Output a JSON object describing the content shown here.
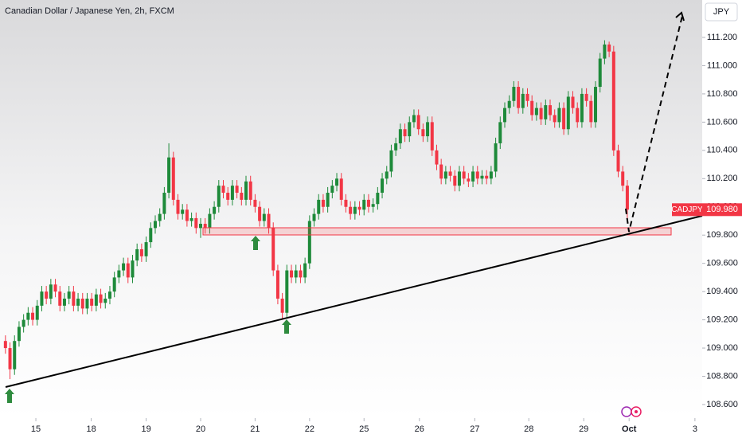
{
  "chart_data": {
    "type": "candlestick",
    "title": "Canadian Dollar / Japanese Yen, 2h, FXCM",
    "currency": "JPY",
    "symbol": "CADJPY",
    "last_price": {
      "value": 109.98,
      "label": "109.980"
    },
    "up_color": "#1e8a3a",
    "down_color": "#f23645",
    "grid": false,
    "xlim": [
      -1.2,
      153.5
    ],
    "ylim": [
      108.504,
      111.465
    ],
    "xticks": [
      {
        "value": 6.7,
        "label": "15"
      },
      {
        "value": 18.9,
        "label": "18"
      },
      {
        "value": 31,
        "label": "19"
      },
      {
        "value": 43,
        "label": "20"
      },
      {
        "value": 55,
        "label": "21"
      },
      {
        "value": 67,
        "label": "22"
      },
      {
        "value": 79,
        "label": "25"
      },
      {
        "value": 91.2,
        "label": "26"
      },
      {
        "value": 103.4,
        "label": "27"
      },
      {
        "value": 115.3,
        "label": "28"
      },
      {
        "value": 127.4,
        "label": "29"
      },
      {
        "value": 137.4,
        "label": "Oct"
      },
      {
        "value": 151.9,
        "label": "3"
      }
    ],
    "yticks": [
      {
        "value": 108.6,
        "label": "108.600"
      },
      {
        "value": 108.8,
        "label": "108.800"
      },
      {
        "value": 109.0,
        "label": "109.000"
      },
      {
        "value": 109.2,
        "label": "109.200"
      },
      {
        "value": 109.4,
        "label": "109.400"
      },
      {
        "value": 109.6,
        "label": "109.600"
      },
      {
        "value": 109.8,
        "label": "109.800"
      },
      {
        "value": 110.0,
        "label": "110.000"
      },
      {
        "value": 110.2,
        "label": "110.200"
      },
      {
        "value": 110.4,
        "label": "110.400"
      },
      {
        "value": 110.6,
        "label": "110.600"
      },
      {
        "value": 110.8,
        "label": "110.800"
      },
      {
        "value": 111.0,
        "label": "111.000"
      },
      {
        "value": 111.2,
        "label": "111.200"
      }
    ],
    "candles": [
      [
        109.05,
        109.09,
        108.96,
        109.0
      ],
      [
        109.0,
        109.04,
        108.78,
        108.85
      ],
      [
        108.85,
        109.09,
        108.81,
        109.05
      ],
      [
        109.05,
        109.19,
        109.01,
        109.15
      ],
      [
        109.15,
        109.24,
        109.11,
        109.2
      ],
      [
        109.2,
        109.29,
        109.16,
        109.25
      ],
      [
        109.25,
        109.29,
        109.16,
        109.2
      ],
      [
        109.2,
        109.34,
        109.16,
        109.3
      ],
      [
        109.3,
        109.44,
        109.26,
        109.4
      ],
      [
        109.4,
        109.44,
        109.31,
        109.35
      ],
      [
        109.35,
        109.49,
        109.31,
        109.45
      ],
      [
        109.45,
        109.49,
        109.36,
        109.4
      ],
      [
        109.4,
        109.44,
        109.26,
        109.3
      ],
      [
        109.3,
        109.39,
        109.26,
        109.35
      ],
      [
        109.35,
        109.44,
        109.31,
        109.4
      ],
      [
        109.4,
        109.44,
        109.26,
        109.3
      ],
      [
        109.3,
        109.39,
        109.26,
        109.35
      ],
      [
        109.35,
        109.39,
        109.24,
        109.28
      ],
      [
        109.28,
        109.39,
        109.24,
        109.35
      ],
      [
        109.35,
        109.39,
        109.26,
        109.3
      ],
      [
        109.3,
        109.42,
        109.26,
        109.38
      ],
      [
        109.38,
        109.42,
        109.28,
        109.32
      ],
      [
        109.32,
        109.39,
        109.28,
        109.35
      ],
      [
        109.35,
        109.44,
        109.31,
        109.4
      ],
      [
        109.4,
        109.54,
        109.36,
        109.5
      ],
      [
        109.5,
        109.59,
        109.46,
        109.55
      ],
      [
        109.55,
        109.64,
        109.51,
        109.6
      ],
      [
        109.6,
        109.64,
        109.46,
        109.5
      ],
      [
        109.5,
        109.66,
        109.46,
        109.62
      ],
      [
        109.62,
        109.74,
        109.58,
        109.7
      ],
      [
        109.7,
        109.74,
        109.61,
        109.65
      ],
      [
        109.65,
        109.79,
        109.61,
        109.75
      ],
      [
        109.75,
        109.89,
        109.71,
        109.85
      ],
      [
        109.85,
        109.94,
        109.81,
        109.9
      ],
      [
        109.9,
        109.99,
        109.86,
        109.95
      ],
      [
        109.95,
        110.14,
        109.91,
        110.1
      ],
      [
        110.1,
        110.45,
        110.06,
        110.35
      ],
      [
        110.35,
        110.39,
        110.01,
        110.05
      ],
      [
        110.05,
        110.09,
        109.91,
        109.95
      ],
      [
        109.95,
        110.02,
        109.91,
        109.98
      ],
      [
        109.98,
        110.02,
        109.86,
        109.9
      ],
      [
        109.9,
        109.96,
        109.86,
        109.92
      ],
      [
        109.92,
        109.96,
        109.81,
        109.85
      ],
      [
        109.85,
        109.92,
        109.78,
        109.88
      ],
      [
        109.88,
        109.92,
        109.81,
        109.85
      ],
      [
        109.85,
        109.99,
        109.81,
        109.95
      ],
      [
        109.95,
        110.04,
        109.91,
        110.0
      ],
      [
        110.0,
        110.19,
        109.96,
        110.15
      ],
      [
        110.15,
        110.19,
        110.06,
        110.1
      ],
      [
        110.1,
        110.14,
        110.01,
        110.05
      ],
      [
        110.05,
        110.19,
        110.01,
        110.15
      ],
      [
        110.15,
        110.19,
        110.06,
        110.1
      ],
      [
        110.1,
        110.14,
        110.01,
        110.05
      ],
      [
        110.05,
        110.22,
        110.01,
        110.18
      ],
      [
        110.18,
        110.22,
        110.01,
        110.05
      ],
      [
        110.05,
        110.09,
        109.96,
        110.0
      ],
      [
        110.0,
        110.04,
        109.86,
        109.9
      ],
      [
        109.9,
        109.99,
        109.86,
        109.95
      ],
      [
        109.95,
        109.99,
        109.81,
        109.85
      ],
      [
        109.85,
        109.89,
        109.51,
        109.55
      ],
      [
        109.55,
        109.59,
        109.31,
        109.35
      ],
      [
        109.35,
        109.39,
        109.2,
        109.25
      ],
      [
        109.25,
        109.59,
        109.21,
        109.55
      ],
      [
        109.55,
        109.59,
        109.46,
        109.5
      ],
      [
        109.5,
        109.59,
        109.46,
        109.55
      ],
      [
        109.55,
        109.59,
        109.46,
        109.5
      ],
      [
        109.5,
        109.64,
        109.46,
        109.6
      ],
      [
        109.6,
        109.94,
        109.56,
        109.9
      ],
      [
        109.9,
        109.99,
        109.86,
        109.95
      ],
      [
        109.95,
        110.09,
        109.91,
        110.05
      ],
      [
        110.05,
        110.09,
        109.96,
        110.0
      ],
      [
        110.0,
        110.14,
        109.96,
        110.1
      ],
      [
        110.1,
        110.19,
        110.06,
        110.15
      ],
      [
        110.15,
        110.24,
        110.11,
        110.2
      ],
      [
        110.2,
        110.24,
        110.01,
        110.05
      ],
      [
        110.05,
        110.09,
        109.96,
        110.0
      ],
      [
        110.0,
        110.04,
        109.91,
        109.95
      ],
      [
        109.95,
        110.04,
        109.91,
        110.0
      ],
      [
        110.0,
        110.04,
        109.94,
        109.98
      ],
      [
        109.98,
        110.09,
        109.94,
        110.05
      ],
      [
        110.05,
        110.09,
        109.96,
        110.0
      ],
      [
        110.0,
        110.06,
        109.96,
        110.02
      ],
      [
        110.02,
        110.14,
        109.98,
        110.1
      ],
      [
        110.1,
        110.24,
        110.06,
        110.2
      ],
      [
        110.2,
        110.29,
        110.16,
        110.25
      ],
      [
        110.25,
        110.44,
        110.21,
        110.4
      ],
      [
        110.4,
        110.49,
        110.36,
        110.45
      ],
      [
        110.45,
        110.59,
        110.41,
        110.55
      ],
      [
        110.55,
        110.59,
        110.46,
        110.5
      ],
      [
        110.5,
        110.64,
        110.46,
        110.6
      ],
      [
        110.6,
        110.69,
        110.56,
        110.65
      ],
      [
        110.65,
        110.69,
        110.51,
        110.55
      ],
      [
        110.55,
        110.59,
        110.46,
        110.5
      ],
      [
        110.5,
        110.64,
        110.46,
        110.6
      ],
      [
        110.6,
        110.64,
        110.36,
        110.4
      ],
      [
        110.4,
        110.44,
        110.26,
        110.3
      ],
      [
        110.3,
        110.34,
        110.16,
        110.2
      ],
      [
        110.2,
        110.29,
        110.16,
        110.25
      ],
      [
        110.25,
        110.29,
        110.18,
        110.22
      ],
      [
        110.22,
        110.26,
        110.11,
        110.15
      ],
      [
        110.15,
        110.29,
        110.11,
        110.25
      ],
      [
        110.25,
        110.29,
        110.16,
        110.2
      ],
      [
        110.2,
        110.24,
        110.14,
        110.18
      ],
      [
        110.18,
        110.29,
        110.14,
        110.25
      ],
      [
        110.25,
        110.29,
        110.16,
        110.2
      ],
      [
        110.2,
        110.26,
        110.16,
        110.22
      ],
      [
        110.22,
        110.26,
        110.16,
        110.2
      ],
      [
        110.2,
        110.29,
        110.16,
        110.25
      ],
      [
        110.25,
        110.49,
        110.21,
        110.45
      ],
      [
        110.45,
        110.64,
        110.41,
        110.6
      ],
      [
        110.6,
        110.74,
        110.56,
        110.7
      ],
      [
        110.7,
        110.79,
        110.66,
        110.75
      ],
      [
        110.75,
        110.89,
        110.71,
        110.85
      ],
      [
        110.85,
        110.89,
        110.66,
        110.7
      ],
      [
        110.7,
        110.84,
        110.66,
        110.8
      ],
      [
        110.8,
        110.84,
        110.71,
        110.75
      ],
      [
        110.75,
        110.79,
        110.61,
        110.65
      ],
      [
        110.65,
        110.74,
        110.61,
        110.7
      ],
      [
        110.7,
        110.74,
        110.58,
        110.62
      ],
      [
        110.62,
        110.76,
        110.58,
        110.72
      ],
      [
        110.72,
        110.76,
        110.61,
        110.65
      ],
      [
        110.65,
        110.69,
        110.56,
        110.6
      ],
      [
        110.6,
        110.74,
        110.56,
        110.7
      ],
      [
        110.7,
        110.74,
        110.51,
        110.55
      ],
      [
        110.55,
        110.82,
        110.51,
        110.78
      ],
      [
        110.78,
        110.82,
        110.66,
        110.7
      ],
      [
        110.7,
        110.74,
        110.56,
        110.6
      ],
      [
        110.6,
        110.84,
        110.56,
        110.8
      ],
      [
        110.8,
        110.84,
        110.71,
        110.75
      ],
      [
        110.75,
        110.79,
        110.56,
        110.6
      ],
      [
        110.6,
        110.89,
        110.56,
        110.85
      ],
      [
        110.85,
        111.09,
        110.81,
        111.05
      ],
      [
        111.05,
        111.18,
        111.01,
        111.15
      ],
      [
        111.15,
        111.17,
        111.06,
        111.1
      ],
      [
        111.1,
        111.14,
        110.36,
        110.4
      ],
      [
        110.4,
        110.44,
        110.21,
        110.25
      ],
      [
        110.25,
        110.29,
        110.11,
        110.15
      ],
      [
        110.15,
        110.19,
        109.91,
        109.98
      ]
    ]
  }
}
